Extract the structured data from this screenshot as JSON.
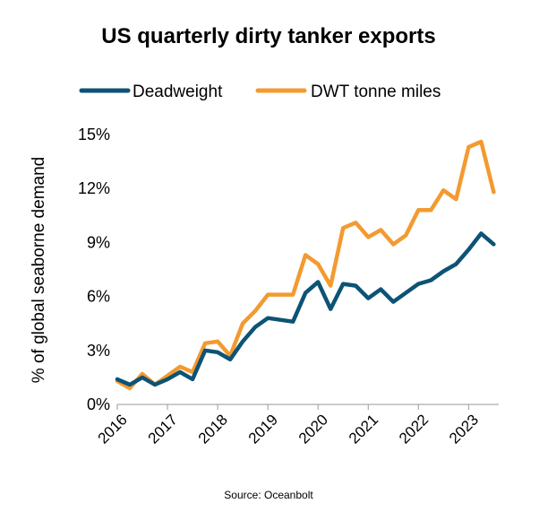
{
  "chart_data": {
    "type": "line",
    "title": "US quarterly dirty tanker exports",
    "ylabel": "% of global seaborne demand",
    "xlabel": "",
    "source": "Source: Oceanbolt",
    "x_ticks": [
      "2016",
      "2017",
      "2018",
      "2019",
      "2020",
      "2021",
      "2022",
      "2023"
    ],
    "y_ticks": [
      "0%",
      "3%",
      "6%",
      "9%",
      "12%",
      "15%"
    ],
    "ylim": [
      0,
      15
    ],
    "xlim": [
      2016.0,
      2023.6
    ],
    "grid": false,
    "legend_position": "top",
    "x": [
      2016.0,
      2016.25,
      2016.5,
      2016.75,
      2017.0,
      2017.25,
      2017.5,
      2017.75,
      2018.0,
      2018.25,
      2018.5,
      2018.75,
      2019.0,
      2019.25,
      2019.5,
      2019.75,
      2020.0,
      2020.25,
      2020.5,
      2020.75,
      2021.0,
      2021.25,
      2021.5,
      2021.75,
      2022.0,
      2022.25,
      2022.5,
      2022.75,
      2023.0,
      2023.25,
      2023.5
    ],
    "series": [
      {
        "name": "Deadweight",
        "color": "#0d5375",
        "values": [
          1.4,
          1.1,
          1.5,
          1.1,
          1.4,
          1.8,
          1.4,
          3.0,
          2.9,
          2.5,
          3.5,
          4.3,
          4.8,
          4.7,
          4.6,
          6.2,
          6.8,
          5.3,
          6.7,
          6.6,
          5.9,
          6.4,
          5.7,
          6.2,
          6.7,
          6.9,
          7.4,
          7.8,
          8.6,
          9.5,
          8.9
        ]
      },
      {
        "name": "DWT tonne miles",
        "color": "#f39a30",
        "values": [
          1.3,
          0.9,
          1.7,
          1.1,
          1.6,
          2.1,
          1.8,
          3.4,
          3.5,
          2.7,
          4.5,
          5.2,
          6.1,
          6.1,
          6.1,
          8.3,
          7.8,
          6.6,
          9.8,
          10.1,
          9.3,
          9.7,
          8.9,
          9.4,
          10.8,
          10.8,
          11.9,
          11.4,
          14.3,
          14.6,
          11.8
        ]
      }
    ]
  }
}
